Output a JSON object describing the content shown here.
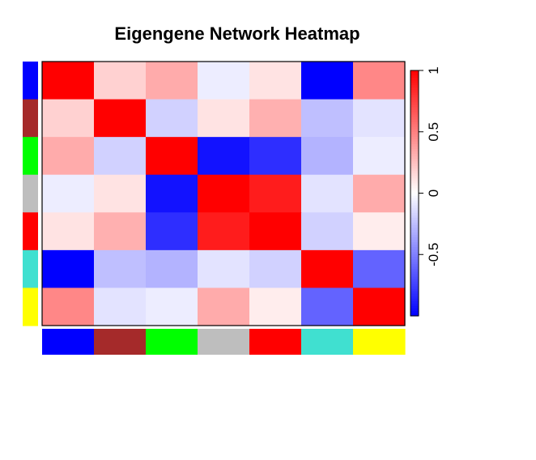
{
  "chart_data": {
    "type": "heatmap",
    "title": "Eigengene Network Heatmap",
    "xlabel": "",
    "ylabel": "",
    "modules": [
      "blue",
      "brown",
      "green",
      "grey",
      "red",
      "turquoise",
      "yellow"
    ],
    "module_colors": [
      "#0000FF",
      "#A52A2A",
      "#00FF00",
      "#BEBEBE",
      "#FF0000",
      "#40E0D0",
      "#FFFF00"
    ],
    "matrix": [
      [
        1.0,
        0.18,
        0.33,
        -0.07,
        0.11,
        -1.0,
        0.47
      ],
      [
        0.18,
        1.0,
        -0.18,
        0.11,
        0.31,
        -0.25,
        -0.11
      ],
      [
        0.33,
        -0.18,
        1.0,
        -0.93,
        -0.82,
        -0.3,
        -0.07
      ],
      [
        -0.07,
        0.11,
        -0.93,
        1.0,
        0.89,
        -0.11,
        0.33
      ],
      [
        0.11,
        0.31,
        -0.82,
        0.89,
        1.0,
        -0.18,
        0.07
      ],
      [
        -1.0,
        -0.25,
        -0.3,
        -0.11,
        -0.18,
        1.0,
        -0.61
      ],
      [
        0.47,
        -0.11,
        -0.07,
        0.33,
        0.07,
        -0.61,
        1.0
      ]
    ],
    "colorbar": {
      "range": [
        -1,
        1
      ],
      "ticks": [
        -0.5,
        0,
        0.5,
        1
      ],
      "tick_labels": [
        "-0.5",
        "0",
        "0.5",
        "1"
      ],
      "low_color": "#0000FF",
      "mid_color": "#FFFFFF",
      "high_color": "#FF0000"
    }
  }
}
